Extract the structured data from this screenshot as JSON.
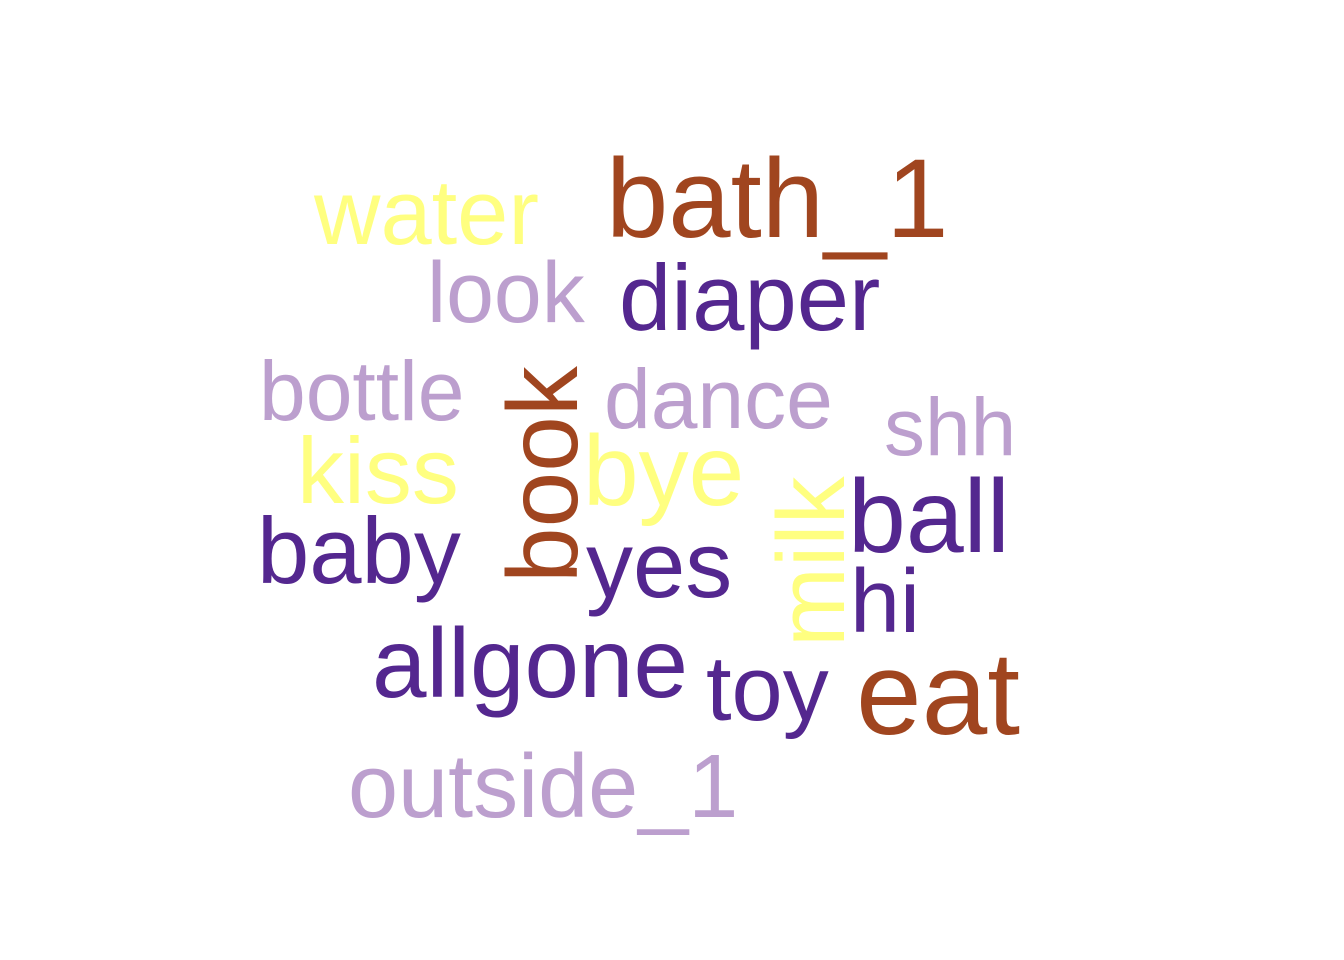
{
  "chart_data": {
    "type": "wordcloud",
    "title": "",
    "color_groups": {
      "dark_purple": "#54278f",
      "light_purple": "#bc9fce",
      "yellow": "#ffff80",
      "brown": "#a0451f"
    },
    "words": [
      {
        "text": "bath_1",
        "color": "#a0451f",
        "vertical": false
      },
      {
        "text": "water",
        "color": "#ffff80",
        "vertical": false
      },
      {
        "text": "look",
        "color": "#bc9fce",
        "vertical": false
      },
      {
        "text": "diaper",
        "color": "#54278f",
        "vertical": false
      },
      {
        "text": "bottle",
        "color": "#bc9fce",
        "vertical": false
      },
      {
        "text": "book",
        "color": "#a0451f",
        "vertical": true
      },
      {
        "text": "dance",
        "color": "#bc9fce",
        "vertical": false
      },
      {
        "text": "shh",
        "color": "#bc9fce",
        "vertical": false
      },
      {
        "text": "kiss",
        "color": "#ffff80",
        "vertical": false
      },
      {
        "text": "bye",
        "color": "#ffff80",
        "vertical": false
      },
      {
        "text": "milk",
        "color": "#ffff80",
        "vertical": true
      },
      {
        "text": "ball",
        "color": "#54278f",
        "vertical": false
      },
      {
        "text": "baby",
        "color": "#54278f",
        "vertical": false
      },
      {
        "text": "yes",
        "color": "#54278f",
        "vertical": false
      },
      {
        "text": "hi",
        "color": "#54278f",
        "vertical": false
      },
      {
        "text": "allgone",
        "color": "#54278f",
        "vertical": false
      },
      {
        "text": "toy",
        "color": "#54278f",
        "vertical": false
      },
      {
        "text": "eat",
        "color": "#a0451f",
        "vertical": false
      },
      {
        "text": "outside_1",
        "color": "#bc9fce",
        "vertical": false
      }
    ]
  }
}
